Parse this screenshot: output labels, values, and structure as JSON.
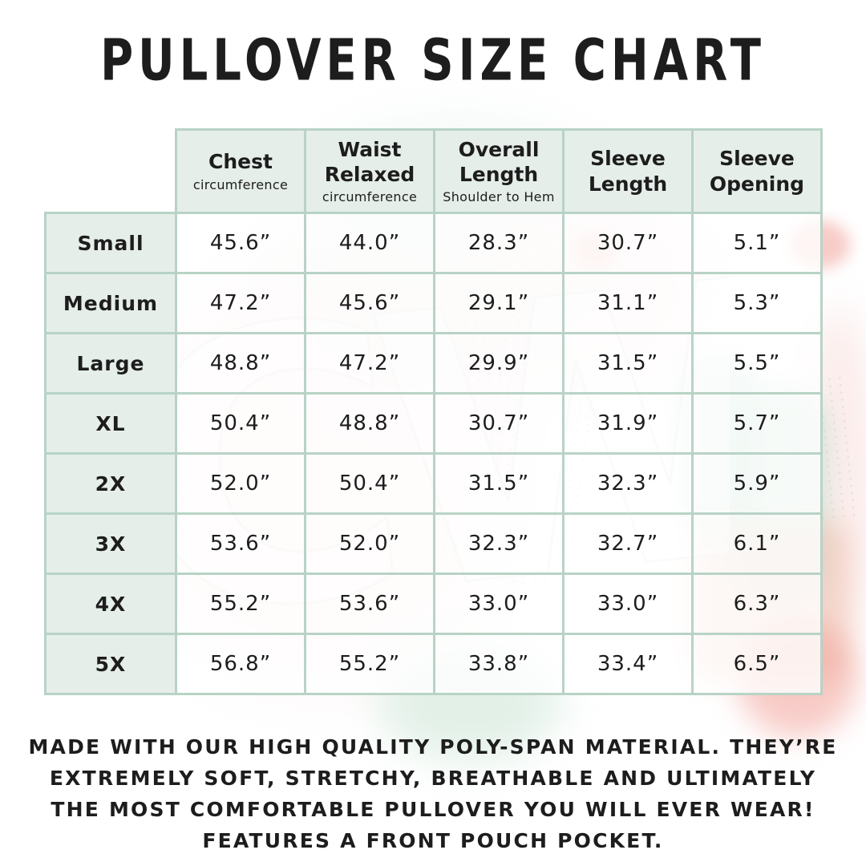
{
  "page": {
    "title": "PULLOVER SIZE CHART"
  },
  "table": {
    "columns": [
      {
        "label": "Chest",
        "sub": "circumference"
      },
      {
        "label": "Waist Relaxed",
        "sub": "circumference"
      },
      {
        "label": "Overall Length",
        "sub": "Shoulder to Hem"
      },
      {
        "label": "Sleeve Length",
        "sub": ""
      },
      {
        "label": "Sleeve Opening",
        "sub": ""
      }
    ],
    "rows": [
      {
        "size": "Small",
        "values": [
          "45.6”",
          "44.0”",
          "28.3”",
          "30.7”",
          "5.1”"
        ]
      },
      {
        "size": "Medium",
        "values": [
          "47.2”",
          "45.6”",
          "29.1”",
          "31.1”",
          "5.3”"
        ]
      },
      {
        "size": "Large",
        "values": [
          "48.8”",
          "47.2”",
          "29.9”",
          "31.5”",
          "5.5”"
        ]
      },
      {
        "size": "XL",
        "values": [
          "50.4”",
          "48.8”",
          "30.7”",
          "31.9”",
          "5.7”"
        ]
      },
      {
        "size": "2X",
        "values": [
          "52.0”",
          "50.4”",
          "31.5”",
          "32.3”",
          "5.9”"
        ]
      },
      {
        "size": "3X",
        "values": [
          "53.6”",
          "52.0”",
          "32.3”",
          "32.7”",
          "6.1”"
        ]
      },
      {
        "size": "4X",
        "values": [
          "55.2”",
          "53.6”",
          "33.0”",
          "33.0”",
          "6.3”"
        ]
      },
      {
        "size": "5X",
        "values": [
          "56.8”",
          "55.2”",
          "33.8”",
          "33.4”",
          "6.5”"
        ]
      }
    ]
  },
  "description": {
    "lines": [
      "MADE WITH OUR HIGH QUALITY POLY-SPAN MATERIAL. THEY’RE",
      "EXTREMELY SOFT, STRETCHY, BREATHABLE AND ULTIMATELY",
      "THE MOST COMFORTABLE PULLOVER YOU WILL EVER WEAR!",
      "FEATURES A FRONT POUCH POCKET."
    ]
  },
  "watermark": {
    "letters": "CW"
  },
  "colors": {
    "table_border": "#b8d3c6",
    "header_fill": "#e5eee9",
    "cell_fill": "rgba(255,255,255,0.8)",
    "text": "#1d1d1d"
  },
  "chart_data": {
    "type": "table",
    "title": "PULLOVER SIZE CHART",
    "columns": [
      "Size",
      "Chest circumference",
      "Waist Relaxed circumference",
      "Overall Length Shoulder to Hem",
      "Sleeve Length",
      "Sleeve Opening"
    ],
    "rows": [
      [
        "Small",
        "45.6”",
        "44.0”",
        "28.3”",
        "30.7”",
        "5.1”"
      ],
      [
        "Medium",
        "47.2”",
        "45.6”",
        "29.1”",
        "31.1”",
        "5.3”"
      ],
      [
        "Large",
        "48.8”",
        "47.2”",
        "29.9”",
        "31.5”",
        "5.5”"
      ],
      [
        "XL",
        "50.4”",
        "48.8”",
        "30.7”",
        "31.9”",
        "5.7”"
      ],
      [
        "2X",
        "52.0”",
        "50.4”",
        "31.5”",
        "32.3”",
        "5.9”"
      ],
      [
        "3X",
        "53.6”",
        "52.0”",
        "32.3”",
        "32.7”",
        "6.1”"
      ],
      [
        "4X",
        "55.2”",
        "53.6”",
        "33.0”",
        "33.0”",
        "6.3”"
      ],
      [
        "5X",
        "56.8”",
        "55.2”",
        "33.8”",
        "33.4”",
        "6.5”"
      ]
    ],
    "units": "inches"
  }
}
